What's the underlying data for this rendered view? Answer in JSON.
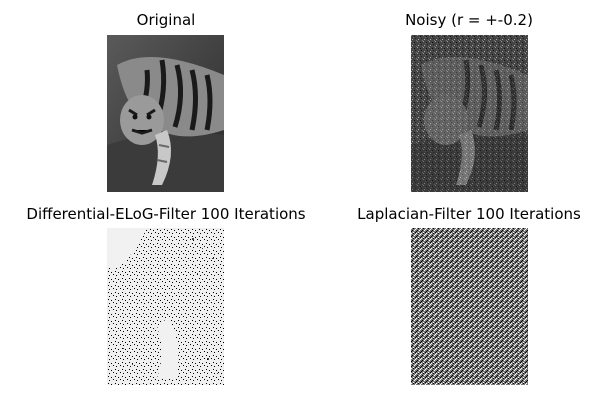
{
  "panels": [
    {
      "title": "Original"
    },
    {
      "title": "Noisy (r = +-0.2)"
    },
    {
      "title": "Differential-ELoG-Filter 100 Iterations"
    },
    {
      "title": "Laplacian-Filter 100 Iterations"
    }
  ]
}
